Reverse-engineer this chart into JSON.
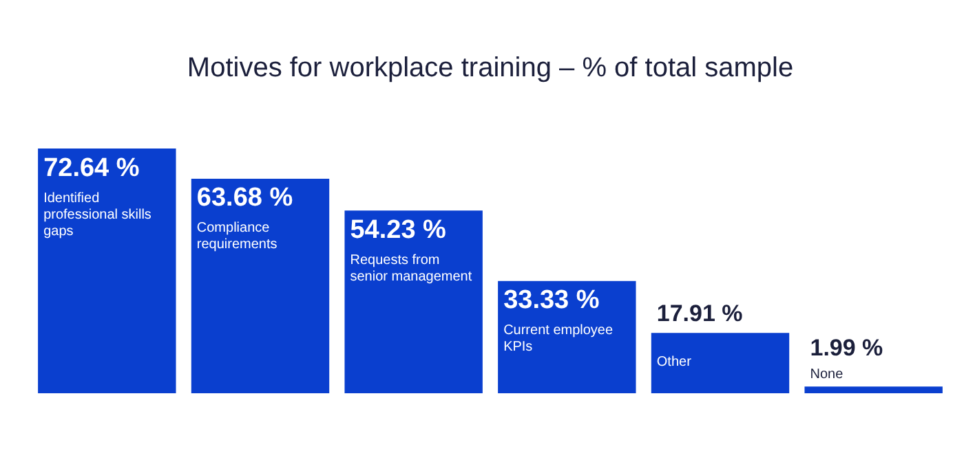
{
  "chart_data": {
    "type": "bar",
    "title": "Motives for workplace training – % of total sample",
    "categories": [
      "Identified professional skills gaps",
      "Compliance requirements",
      "Requests from senior management",
      "Current employee KPIs",
      "Other",
      "None"
    ],
    "values": [
      72.64,
      63.68,
      54.23,
      33.33,
      17.91,
      1.99
    ],
    "value_labels": [
      "72.64 %",
      "63.68 %",
      "54.23 %",
      "33.33 %",
      "17.91 %",
      "1.99 %"
    ],
    "color": "#0a3fcf",
    "legend": false,
    "tick_labels": false
  }
}
